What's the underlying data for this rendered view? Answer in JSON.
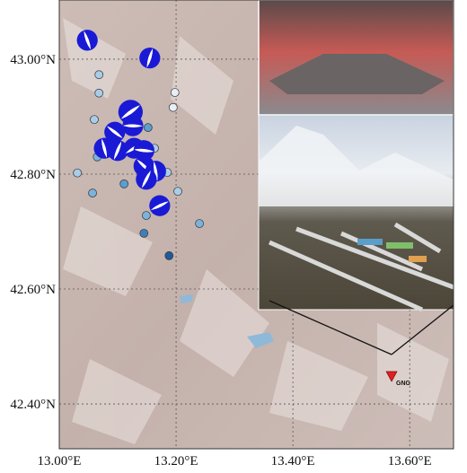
{
  "map": {
    "xlim": [
      13.0,
      13.675
    ],
    "ylim": [
      42.322,
      43.103
    ],
    "xticks": [
      {
        "value": 13.0,
        "label": "13.00°E"
      },
      {
        "value": 13.2,
        "label": "13.20°E"
      },
      {
        "value": 13.4,
        "label": "13.40°E"
      },
      {
        "value": 13.6,
        "label": "13.60°E"
      }
    ],
    "yticks": [
      {
        "value": 43.0,
        "label": "43.00°N"
      },
      {
        "value": 42.8,
        "label": "42.80°N"
      },
      {
        "value": 42.6,
        "label": "42.60°N"
      },
      {
        "value": 42.4,
        "label": "42.40°N"
      }
    ],
    "grid": true,
    "mechanisms": {
      "color": "#1a1ad6",
      "lon": [
        13.048,
        13.155,
        13.122,
        13.126,
        13.095,
        13.077,
        13.1,
        13.128,
        13.145,
        13.145,
        13.165,
        13.149,
        13.172
      ],
      "lat": [
        43.033,
        43.002,
        42.908,
        42.884,
        42.873,
        42.845,
        42.841,
        42.845,
        42.841,
        42.814,
        42.805,
        42.791,
        42.745
      ]
    },
    "events": {
      "lon": [
        13.068,
        13.068,
        13.198,
        13.195,
        13.06,
        13.152,
        13.163,
        13.065,
        13.031,
        13.111,
        13.185,
        13.203,
        13.057,
        13.149,
        13.24,
        13.145,
        13.188
      ],
      "lat": [
        42.973,
        42.941,
        42.942,
        42.916,
        42.895,
        42.881,
        42.845,
        42.83,
        42.802,
        42.783,
        42.803,
        42.77,
        42.767,
        42.728,
        42.714,
        42.697,
        42.658
      ],
      "colors": [
        "#a9cde8",
        "#a9cde8",
        "#e6eef6",
        "#e6eef6",
        "#a9cde8",
        "#5a9fcf",
        "#a9cde8",
        "#7ab3dc",
        "#a9cde8",
        "#5a9fcf",
        "#a9cde8",
        "#a9cde8",
        "#7ab3dc",
        "#7ab3dc",
        "#7ab3dc",
        "#3f7fb8",
        "#1f5a99"
      ]
    }
  },
  "station": {
    "label": "GNG",
    "lon": 13.569,
    "lat": 42.447,
    "color": "#e02020"
  }
}
